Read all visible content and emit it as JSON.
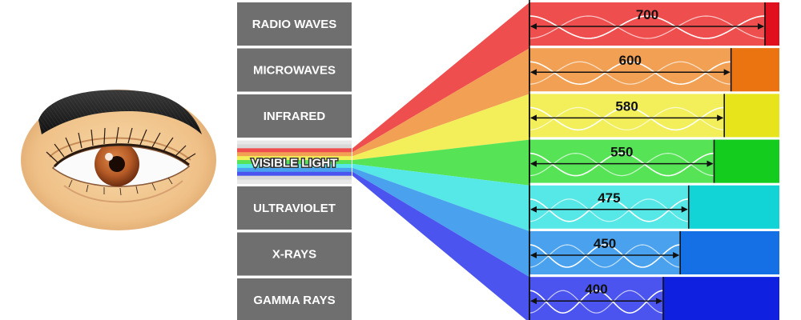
{
  "spectrum": [
    {
      "label": "RADIO WAVES",
      "value": "700",
      "color": "#ef4e4e",
      "dark": "#e0101e"
    },
    {
      "label": "MICROWAVES",
      "value": "600",
      "color": "#f2a054",
      "dark": "#ec7410"
    },
    {
      "label": "INFRARED",
      "value": "580",
      "color": "#f2ef5a",
      "dark": "#e8e41c"
    },
    {
      "label": "VISIBLE LIGHT",
      "value": "550",
      "color": "#56e356",
      "dark": "#14cc1e"
    },
    {
      "label": "ULTRAVIOLET",
      "value": "475",
      "color": "#55e8e6",
      "dark": "#12d4d6"
    },
    {
      "label": "X-RAYS",
      "value": "450",
      "color": "#4aa2ee",
      "dark": "#1470e4"
    },
    {
      "label": "GAMMA RAYS",
      "value": "400",
      "color": "#4b54ee",
      "dark": "#1020e0"
    }
  ],
  "colors": {
    "label_box": "#6f6f6f",
    "label_text": "#ffffff",
    "number_text": "#111111",
    "skin": "#f0c58e",
    "iris": "#b85c2c"
  },
  "icons": {
    "eye": "human-eye-illustration"
  }
}
